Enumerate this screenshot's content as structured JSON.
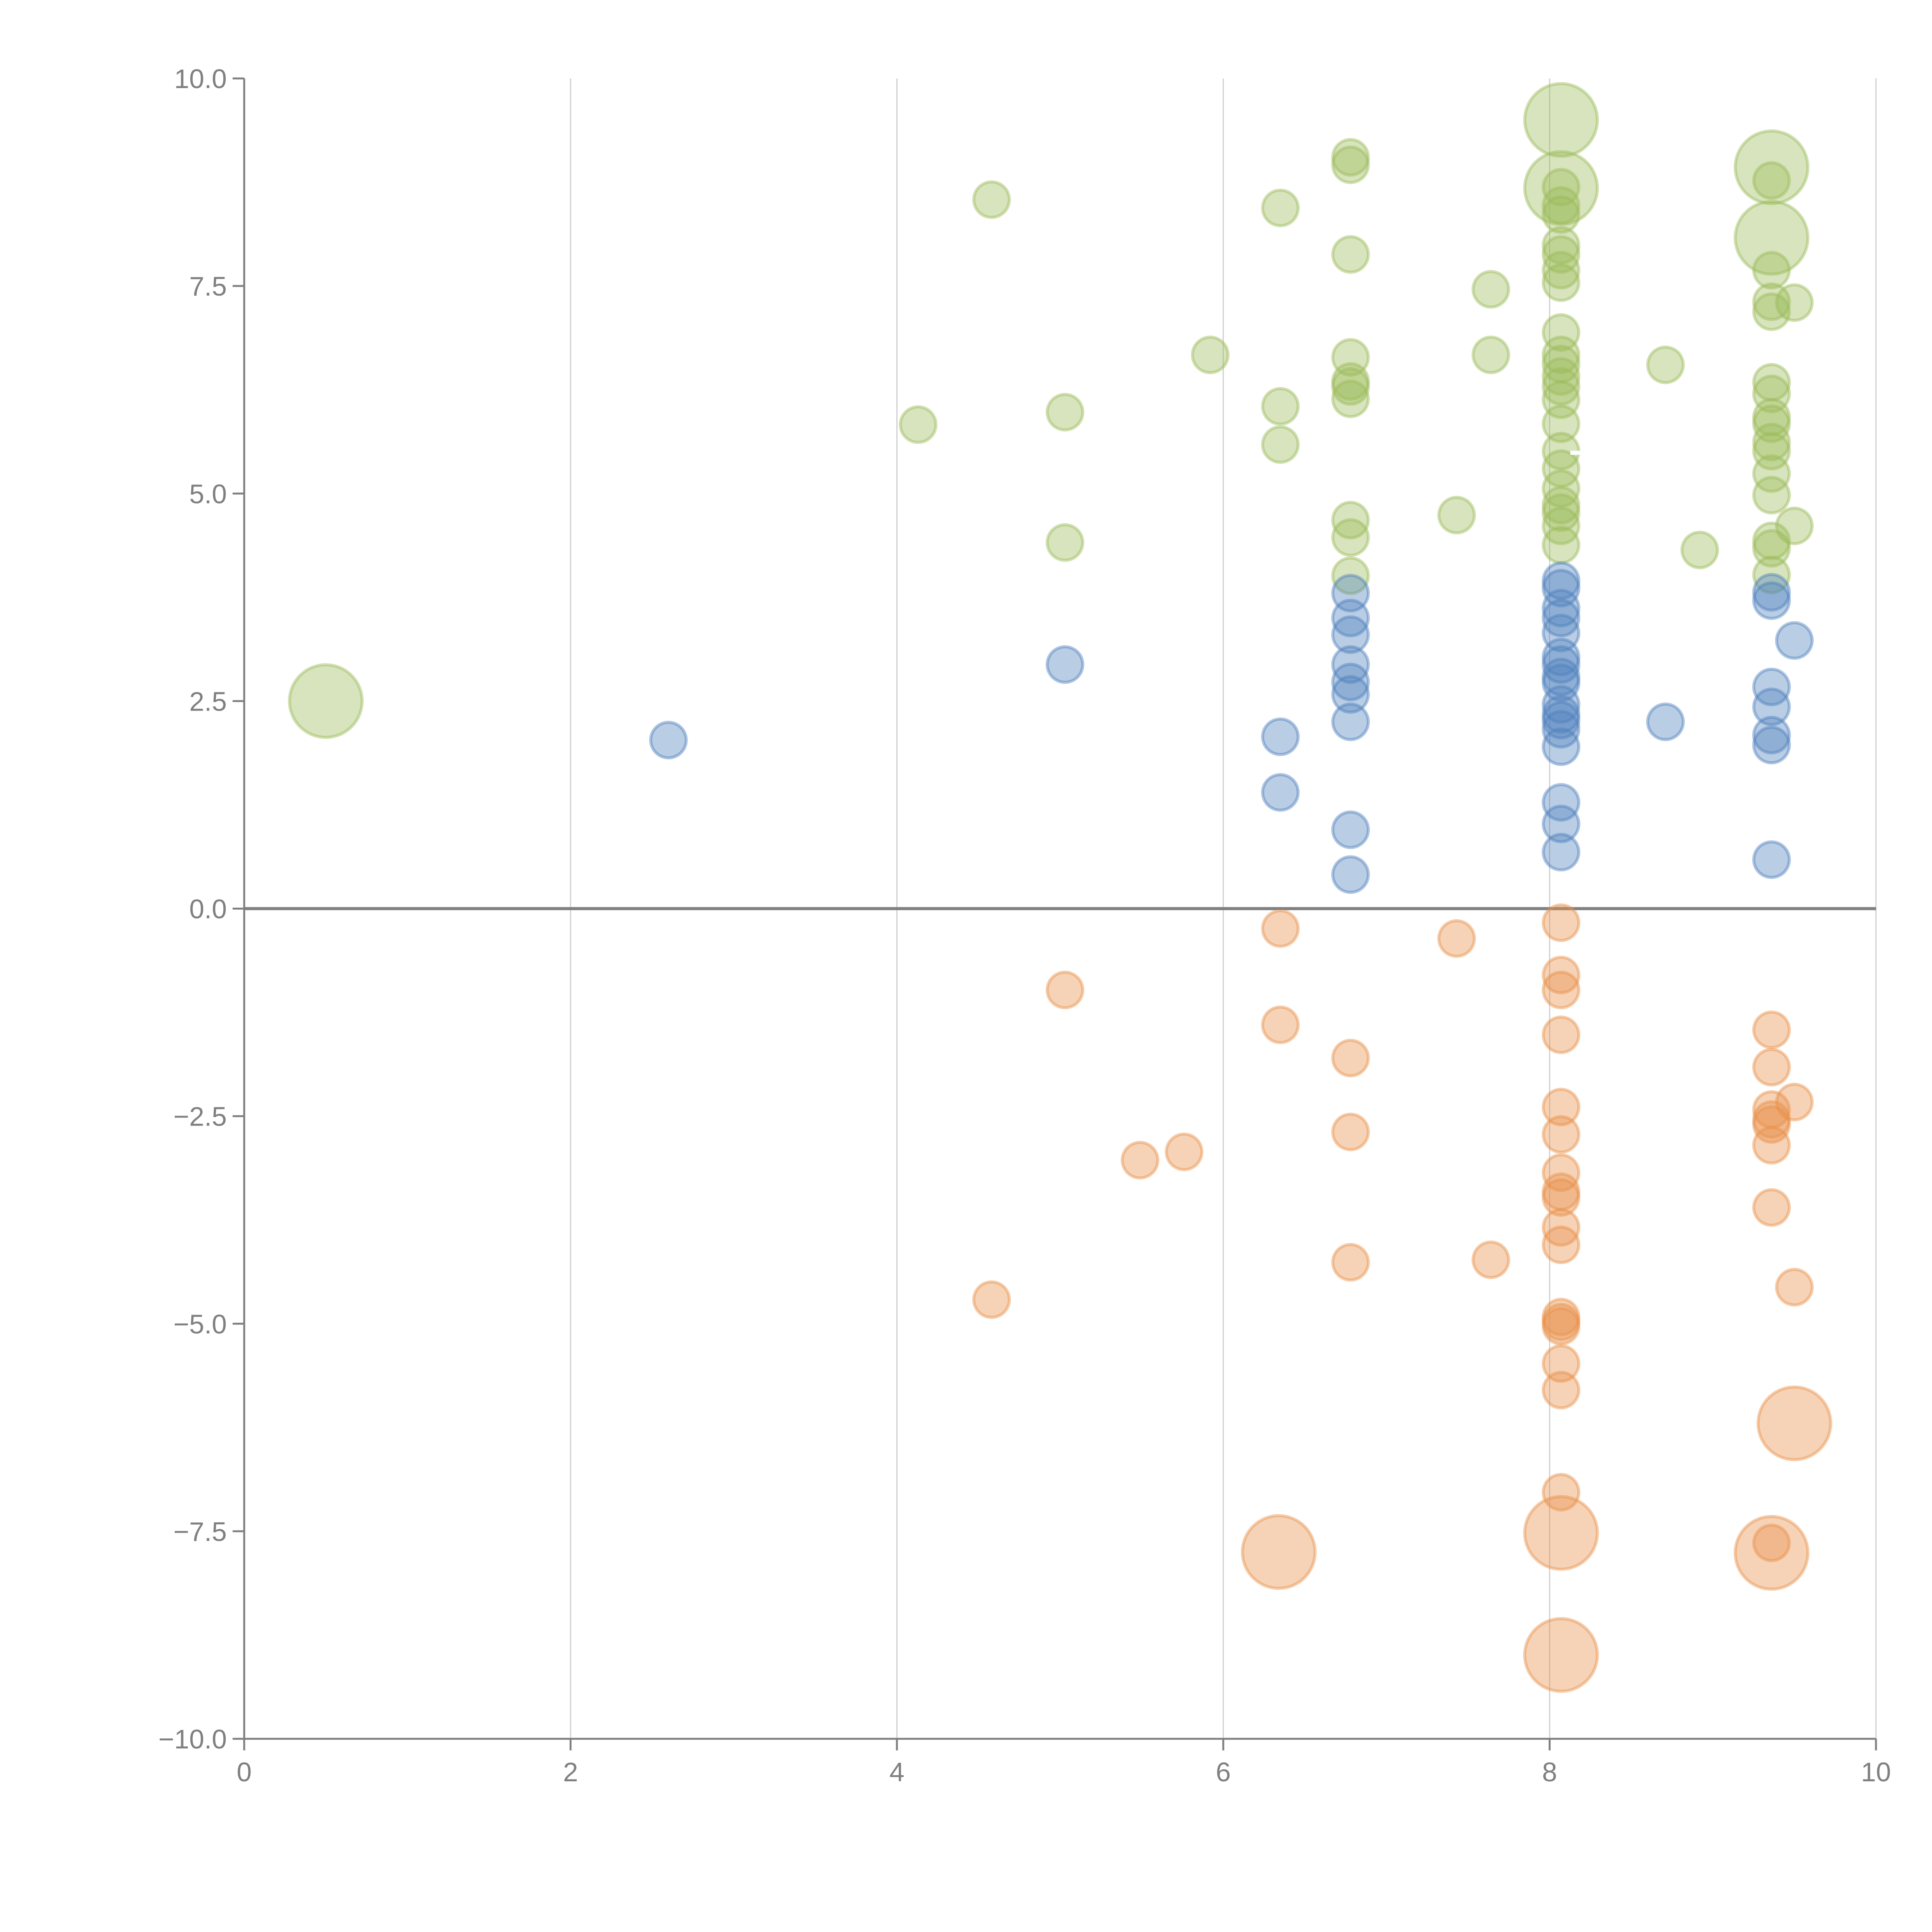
{
  "chart_data": {
    "type": "scatter",
    "title": "",
    "xlabel": "",
    "ylabel": "",
    "xlim": [
      0,
      10
    ],
    "ylim": [
      -10,
      10
    ],
    "grid": "vertical",
    "x_ticks": [
      "0",
      "2",
      "4",
      "6",
      "8",
      "10"
    ],
    "x_tick_values": [
      0,
      2,
      4,
      6,
      8,
      10
    ],
    "y_ticks": [
      "10.0",
      "7.5",
      "5.0",
      "2.5",
      "0.0",
      "−2.5",
      "−5.0",
      "−7.5",
      "−10.0"
    ],
    "y_tick_values": [
      10,
      7.5,
      5,
      2.5,
      0,
      -2.5,
      -5,
      -7.5,
      -10
    ],
    "reference_line_y": 0,
    "annotation": {
      "text": "T",
      "x": 8.12,
      "y": 5.3
    },
    "size_legend": {
      "small": 1,
      "large": 2
    },
    "series": [
      {
        "name": "green",
        "color": "#9bbb59",
        "points": [
          [
            0.5,
            2.5,
            2
          ],
          [
            4.58,
            8.54,
            1
          ],
          [
            4.13,
            5.83,
            1
          ],
          [
            5.03,
            5.98,
            1
          ],
          [
            5.03,
            4.41,
            1
          ],
          [
            5.92,
            6.67,
            1
          ],
          [
            6.35,
            8.44,
            1
          ],
          [
            6.35,
            6.05,
            1
          ],
          [
            6.35,
            5.59,
            1
          ],
          [
            6.78,
            9.05,
            1
          ],
          [
            6.78,
            8.96,
            1
          ],
          [
            6.78,
            7.88,
            1
          ],
          [
            6.78,
            6.64,
            1
          ],
          [
            6.78,
            6.35,
            1
          ],
          [
            6.78,
            6.29,
            1
          ],
          [
            6.78,
            6.14,
            1
          ],
          [
            6.78,
            4.68,
            1
          ],
          [
            6.78,
            4.47,
            1
          ],
          [
            6.78,
            4.01,
            1
          ],
          [
            7.64,
            7.46,
            1
          ],
          [
            7.64,
            6.67,
            1
          ],
          [
            7.43,
            4.74,
            1
          ],
          [
            8.07,
            9.5,
            2
          ],
          [
            8.07,
            8.68,
            2
          ],
          [
            8.07,
            8.69,
            1
          ],
          [
            8.07,
            8.47,
            1
          ],
          [
            8.07,
            8.36,
            1
          ],
          [
            8.07,
            7.99,
            1
          ],
          [
            8.07,
            7.88,
            1
          ],
          [
            8.07,
            7.69,
            1
          ],
          [
            8.07,
            7.54,
            1
          ],
          [
            8.07,
            6.94,
            1
          ],
          [
            8.07,
            6.67,
            1
          ],
          [
            8.07,
            6.56,
            1
          ],
          [
            8.07,
            6.41,
            1
          ],
          [
            8.07,
            6.29,
            1
          ],
          [
            8.07,
            6.13,
            1
          ],
          [
            8.07,
            5.84,
            1
          ],
          [
            8.07,
            5.51,
            1
          ],
          [
            8.07,
            5.3,
            1
          ],
          [
            8.07,
            5.06,
            1
          ],
          [
            8.07,
            4.86,
            1
          ],
          [
            8.07,
            4.77,
            1
          ],
          [
            8.07,
            4.61,
            1
          ],
          [
            8.07,
            4.38,
            1
          ],
          [
            8.71,
            6.55,
            1
          ],
          [
            8.92,
            4.32,
            1
          ],
          [
            9.36,
            8.93,
            2
          ],
          [
            9.36,
            8.08,
            2
          ],
          [
            9.36,
            8.77,
            1
          ],
          [
            9.36,
            7.69,
            1
          ],
          [
            9.36,
            7.31,
            1
          ],
          [
            9.36,
            7.19,
            1
          ],
          [
            9.36,
            6.34,
            1
          ],
          [
            9.36,
            6.2,
            1
          ],
          [
            9.36,
            5.92,
            1
          ],
          [
            9.36,
            5.84,
            1
          ],
          [
            9.36,
            5.62,
            1
          ],
          [
            9.36,
            5.51,
            1
          ],
          [
            9.36,
            5.24,
            1
          ],
          [
            9.36,
            4.98,
            1
          ],
          [
            9.36,
            4.43,
            1
          ],
          [
            9.36,
            4.34,
            1
          ],
          [
            9.36,
            4.02,
            1
          ],
          [
            9.5,
            7.3,
            1
          ],
          [
            9.5,
            4.61,
            1
          ]
        ]
      },
      {
        "name": "blue",
        "color": "#4f81bd",
        "points": [
          [
            2.6,
            2.03,
            1
          ],
          [
            5.03,
            2.94,
            1
          ],
          [
            6.35,
            2.07,
            1
          ],
          [
            6.35,
            1.4,
            1
          ],
          [
            6.78,
            3.8,
            1
          ],
          [
            6.78,
            3.5,
            1
          ],
          [
            6.78,
            3.3,
            1
          ],
          [
            6.78,
            2.94,
            1
          ],
          [
            6.78,
            2.73,
            1
          ],
          [
            6.78,
            2.58,
            1
          ],
          [
            6.78,
            2.25,
            1
          ],
          [
            6.78,
            0.95,
            1
          ],
          [
            6.78,
            0.41,
            1
          ],
          [
            8.07,
            3.95,
            1
          ],
          [
            8.07,
            3.86,
            1
          ],
          [
            8.07,
            3.62,
            1
          ],
          [
            8.07,
            3.5,
            1
          ],
          [
            8.07,
            3.32,
            1
          ],
          [
            8.07,
            3.03,
            1
          ],
          [
            8.07,
            2.94,
            1
          ],
          [
            8.07,
            2.79,
            1
          ],
          [
            8.07,
            2.72,
            1
          ],
          [
            8.07,
            2.46,
            1
          ],
          [
            8.07,
            2.34,
            1
          ],
          [
            8.07,
            2.27,
            1
          ],
          [
            8.07,
            2.16,
            1
          ],
          [
            8.07,
            1.95,
            1
          ],
          [
            8.07,
            1.28,
            1
          ],
          [
            8.07,
            1.02,
            1
          ],
          [
            8.07,
            0.68,
            1
          ],
          [
            8.71,
            2.25,
            1
          ],
          [
            9.36,
            3.81,
            1
          ],
          [
            9.36,
            3.71,
            1
          ],
          [
            9.36,
            2.67,
            1
          ],
          [
            9.36,
            2.43,
            1
          ],
          [
            9.36,
            2.09,
            1
          ],
          [
            9.36,
            1.97,
            1
          ],
          [
            9.36,
            0.59,
            1
          ],
          [
            9.5,
            3.23,
            1
          ]
        ]
      },
      {
        "name": "orange",
        "color": "#e8914a",
        "points": [
          [
            5.03,
            -0.98,
            1
          ],
          [
            4.58,
            -4.71,
            1
          ],
          [
            5.49,
            -3.03,
            1
          ],
          [
            5.76,
            -2.93,
            1
          ],
          [
            6.35,
            -0.24,
            1
          ],
          [
            6.35,
            -1.4,
            1
          ],
          [
            6.34,
            -7.75,
            2
          ],
          [
            6.78,
            -1.8,
            1
          ],
          [
            6.78,
            -2.69,
            1
          ],
          [
            6.78,
            -4.26,
            1
          ],
          [
            7.43,
            -0.36,
            1
          ],
          [
            7.64,
            -4.23,
            1
          ],
          [
            8.07,
            -0.17,
            1
          ],
          [
            8.07,
            -0.8,
            1
          ],
          [
            8.07,
            -0.98,
            1
          ],
          [
            8.07,
            -1.52,
            1
          ],
          [
            8.07,
            -2.39,
            1
          ],
          [
            8.07,
            -2.72,
            1
          ],
          [
            8.07,
            -3.18,
            1
          ],
          [
            8.07,
            -3.41,
            1
          ],
          [
            8.07,
            -3.48,
            1
          ],
          [
            8.07,
            -3.84,
            1
          ],
          [
            8.07,
            -4.05,
            1
          ],
          [
            8.07,
            -4.92,
            1
          ],
          [
            8.07,
            -4.98,
            1
          ],
          [
            8.07,
            -5.03,
            1
          ],
          [
            8.07,
            -5.48,
            1
          ],
          [
            8.07,
            -5.8,
            1
          ],
          [
            8.07,
            -7.03,
            1
          ],
          [
            8.07,
            -7.52,
            2
          ],
          [
            8.07,
            -8.99,
            2
          ],
          [
            9.36,
            -1.46,
            1
          ],
          [
            9.36,
            -1.91,
            1
          ],
          [
            9.36,
            -2.42,
            1
          ],
          [
            9.36,
            -2.54,
            1
          ],
          [
            9.36,
            -2.6,
            1
          ],
          [
            9.36,
            -2.85,
            1
          ],
          [
            9.36,
            -3.6,
            1
          ],
          [
            9.36,
            -7.64,
            1
          ],
          [
            9.36,
            -7.76,
            2
          ],
          [
            9.5,
            -2.33,
            1
          ],
          [
            9.5,
            -4.56,
            1
          ],
          [
            9.5,
            -6.2,
            2
          ]
        ]
      }
    ]
  }
}
